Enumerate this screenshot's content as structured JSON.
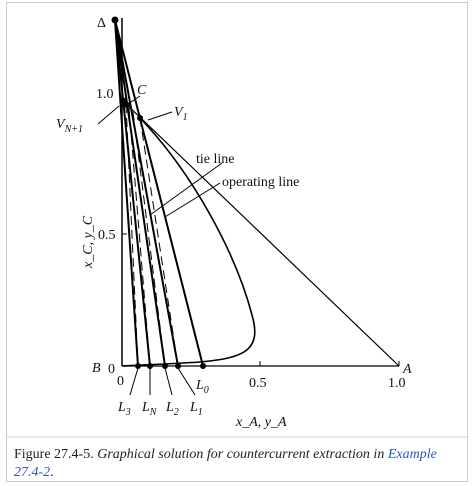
{
  "figure": {
    "points": {
      "delta": "Δ",
      "c": "C",
      "b": "B",
      "a": "A",
      "v1": {
        "main": "V",
        "sub": "1"
      },
      "vn1": {
        "main": "V",
        "sub": "N+1"
      },
      "l0": {
        "main": "L",
        "sub": "0"
      },
      "l1": {
        "main": "L",
        "sub": "1"
      },
      "l2": {
        "main": "L",
        "sub": "2"
      },
      "ln": {
        "main": "L",
        "sub": "N"
      },
      "l3": {
        "main": "L",
        "sub": "3"
      }
    },
    "annotations": {
      "tie_line": "tie line",
      "operating_line": "operating line"
    },
    "y_axis": {
      "label": "x_C, y_C",
      "ticks": [
        "0",
        "0.5",
        "1.0"
      ]
    },
    "x_axis": {
      "label": "x_A, y_A",
      "ticks": [
        "0",
        "0.5",
        "1.0"
      ]
    }
  },
  "caption": {
    "number": "Figure 27.4-5.",
    "text": "Graphical solution for countercurrent extraction in",
    "link": "Example 27.4-2",
    "end": "."
  }
}
